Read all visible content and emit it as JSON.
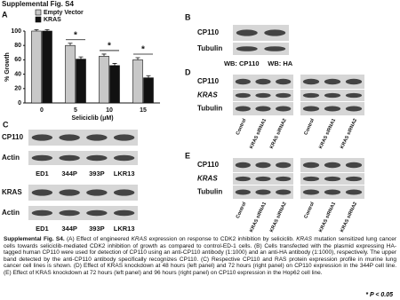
{
  "title": "Supplemental Fig. S4",
  "chart_data": {
    "type": "bar",
    "panel": "A",
    "categories": [
      "0",
      "5",
      "10",
      "15"
    ],
    "x_label": "Seliciclib (μM)",
    "y_label": "% Growth",
    "series": [
      {
        "name": "Empty Vector",
        "color": "#c8c8c8",
        "values": [
          100,
          80,
          65,
          60
        ],
        "errors": [
          2,
          3,
          3,
          3
        ]
      },
      {
        "name": "KRAS",
        "color": "#111111",
        "values": [
          100,
          61,
          52,
          35
        ],
        "errors": [
          2,
          3,
          3,
          3
        ]
      }
    ],
    "annotations": [
      null,
      "*",
      "*",
      "*"
    ],
    "ylim": [
      0,
      100
    ],
    "yticks": [
      0,
      20,
      40,
      60,
      80,
      100
    ]
  },
  "panels": {
    "B": {
      "label": "B",
      "rows": [
        {
          "text": "CP110"
        },
        {
          "text": "Tubulin"
        }
      ],
      "lanes": [
        "WB: CP110",
        "WB: HA"
      ]
    },
    "C": {
      "label": "C",
      "blots": [
        {
          "rows": [
            {
              "text": "CP110"
            },
            {
              "text": "Actin"
            }
          ],
          "lanes": [
            "ED1",
            "344P",
            "393P",
            "LKR13"
          ]
        },
        {
          "rows": [
            {
              "text": "KRAS"
            },
            {
              "text": "Actin"
            }
          ],
          "lanes": [
            "ED1",
            "344P",
            "393P",
            "LKR13"
          ]
        }
      ]
    },
    "D": {
      "label": "D",
      "rows": [
        {
          "text": "CP110"
        },
        {
          "text": "KRAS",
          "italic": true
        },
        {
          "text": "Tubulin"
        }
      ],
      "lanes": [
        "Control",
        "KRAS siRNA1",
        "KRAS siRNA2"
      ]
    },
    "E": {
      "label": "E",
      "rows": [
        {
          "text": "CP110"
        },
        {
          "text": "KRAS",
          "italic": true
        },
        {
          "text": "Tubulin"
        }
      ],
      "lanes": [
        "Control",
        "KRAS siRNA1",
        "KRAS siRNA2"
      ]
    }
  },
  "caption": [
    {
      "text": "Supplemental Fig. S4.",
      "bold": true
    },
    {
      "text": " (A) Effect of engineered "
    },
    {
      "text": "KRAS",
      "italic": true
    },
    {
      "text": " expression on response to CDK2 inhibition by seliciclib. "
    },
    {
      "text": "KRAS",
      "italic": true
    },
    {
      "text": " mutation sensitized lung cancer cells towards seliciclib-mediated CDK2 inhibition of growth as compared to control-ED-1 cells. (B) Cells transfected with the plasmid expressing HA-tagged human CP110 were used for detection of CP110 using an anti-CP110 antibody (1:1000) and an anti-HA antibody (1:1000), respectively. The upper band detected by the anti-CP110 antibody specifically recognizes CP110. (C) Respective CP110 and RAS protein expression profile in murine lung cancer cell lines is shown. (D) Effect of KRAS knockdown at 48 hours (left panel) and 72 hours (right panel) on CP110 expression in the 344P cell line. (E) Effect of KRAS knockdown at 72 hours (left panel) and 96 hours (right panel) on CP110 expression in the Hop62 cell line."
    }
  ],
  "significance": "* P < 0.05"
}
